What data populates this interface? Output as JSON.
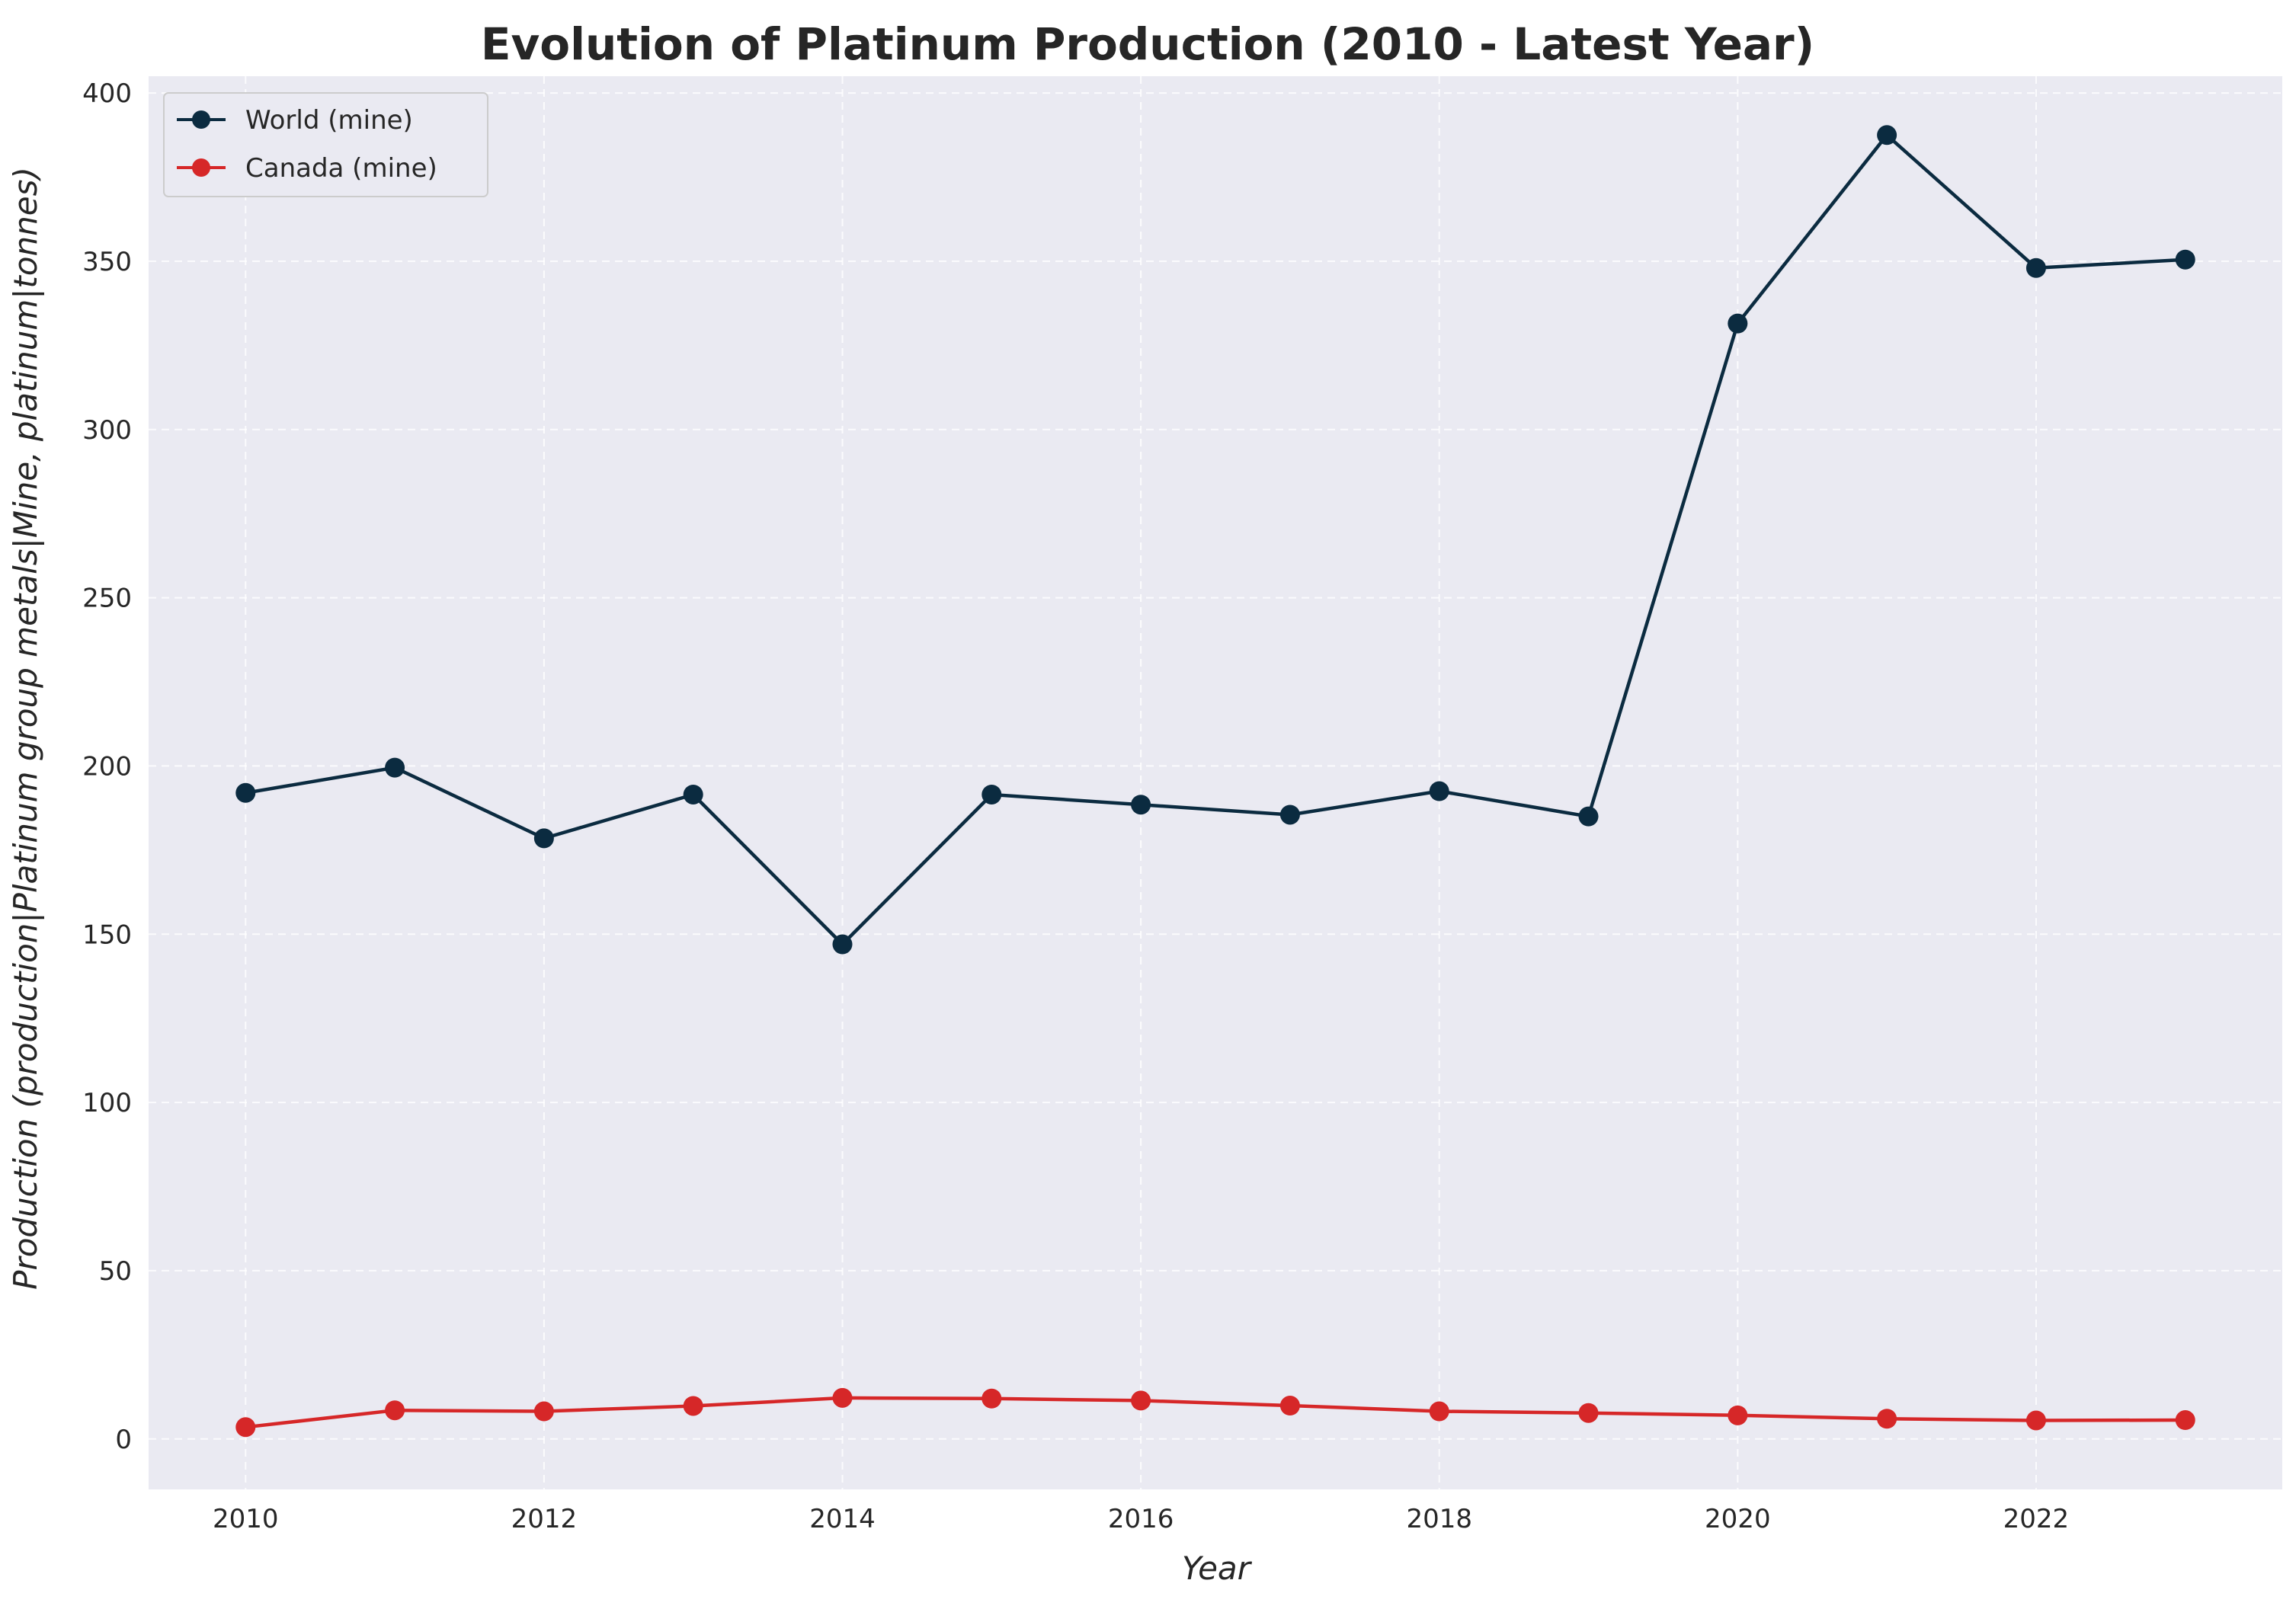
{
  "chart_data": {
    "type": "line",
    "title": "Evolution of Platinum Production (2010 - Latest Year)",
    "xlabel": "Year",
    "ylabel": "Production (production|Platinum group metals|Mine, platinum|tonnes)",
    "x": [
      2010,
      2011,
      2012,
      2013,
      2014,
      2015,
      2016,
      2017,
      2018,
      2019,
      2020,
      2021,
      2022,
      2023
    ],
    "xlim": [
      2009.35,
      2023.65
    ],
    "ylim": [
      -15,
      405
    ],
    "x_ticks": [
      2010,
      2012,
      2014,
      2016,
      2018,
      2020,
      2022
    ],
    "y_ticks": [
      0,
      50,
      100,
      150,
      200,
      250,
      300,
      350,
      400
    ],
    "grid": true,
    "legend_position": "top-left",
    "series": [
      {
        "name": "World (mine)",
        "color": "#0b2b40",
        "values": [
          192,
          199.5,
          178.5,
          191.5,
          147,
          191.5,
          188.5,
          185.5,
          192.5,
          185,
          331.5,
          387.5,
          348,
          350.5
        ]
      },
      {
        "name": "Canada (mine)",
        "color": "#d62728",
        "values": [
          3.5,
          8.5,
          8.2,
          9.8,
          12.2,
          12,
          11.4,
          9.9,
          8.2,
          7.7,
          7,
          6,
          5.5,
          5.6
        ]
      }
    ]
  }
}
